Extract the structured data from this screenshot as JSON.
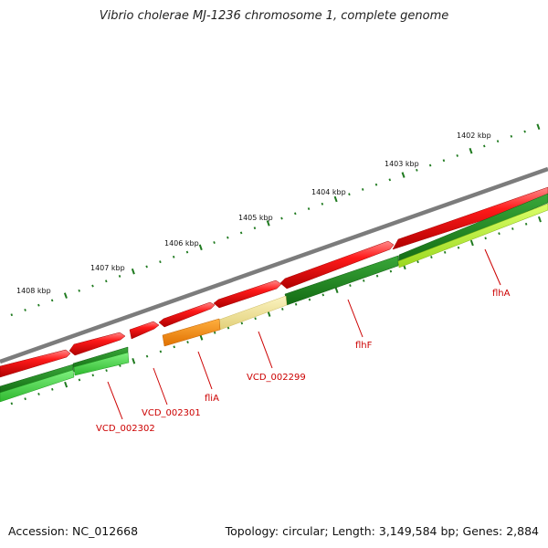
{
  "title": "Vibrio cholerae MJ-1236 chromosome 1, complete genome",
  "footer": {
    "accession": "Accession: NC_012668",
    "summary": "Topology: circular; Length: 3,149,584 bp; Genes: 2,884"
  },
  "kbp_labels": [
    "1402 kbp",
    "1403 kbp",
    "1404 kbp",
    "1405 kbp",
    "1406 kbp",
    "1407 kbp",
    "1408 kbp"
  ],
  "gene_labels": [
    "flhA",
    "flhF",
    "VCD_002299",
    "fliA",
    "VCD_002301",
    "VCD_002302"
  ],
  "colors": {
    "backbone": "#808080",
    "cds_red": "#ff0000",
    "green_dark": "#1e8a1e",
    "green_mid": "#33cc33",
    "green_lime": "#b8f52e",
    "orange": "#ff8c00",
    "pale_yellow": "#efe49a",
    "label_red": "#cc0000"
  }
}
